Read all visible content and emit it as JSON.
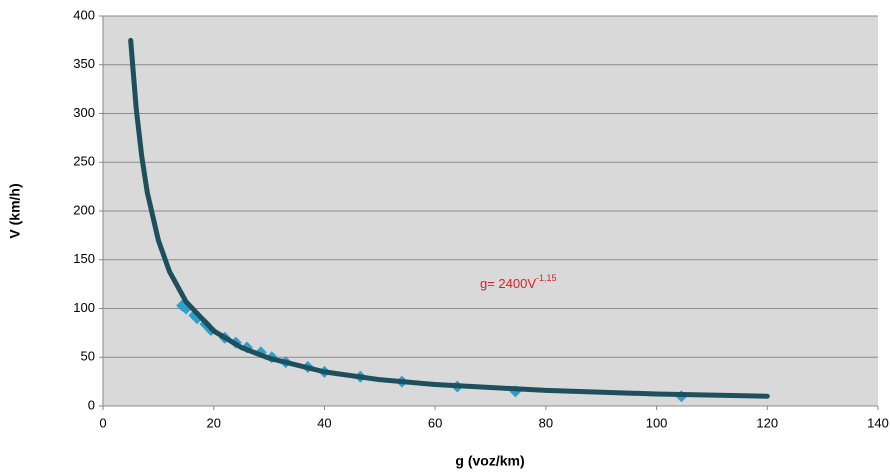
{
  "chart_data": {
    "type": "scatter",
    "x_label": "g (voz/km)",
    "y_label": "V (km/h)",
    "xlim": [
      0,
      140
    ],
    "xticks": [
      0,
      20,
      40,
      60,
      80,
      100,
      120,
      140
    ],
    "ylim": [
      0,
      400
    ],
    "yticks": [
      0,
      50,
      100,
      150,
      200,
      250,
      300,
      350,
      400
    ],
    "grid": true,
    "annotation": {
      "text": "g= 2400V",
      "superscript": "-1,15"
    },
    "series": [
      {
        "color": "#2e9fcb",
        "marker": "diamond",
        "x": [
          14.3,
          15,
          16.5,
          17,
          18.5,
          19.5,
          22,
          24,
          26,
          28.5,
          30.5,
          33,
          37,
          40,
          46.5,
          54,
          64,
          74.5,
          104.5
        ],
        "values": [
          103,
          100,
          93,
          90,
          84,
          78,
          70,
          65,
          60,
          55,
          50,
          45,
          40,
          35,
          30,
          25,
          20,
          15,
          10
        ]
      },
      {
        "color": "#1d4f5c",
        "marker": "line",
        "x": [
          5,
          6,
          7,
          8,
          10,
          12,
          15,
          20,
          25,
          30,
          40,
          50,
          60,
          80,
          100,
          120
        ],
        "values": [
          375,
          305,
          256,
          219,
          170,
          138,
          107,
          77,
          60,
          49,
          35,
          27,
          22,
          16,
          12.3,
          10
        ]
      }
    ]
  }
}
